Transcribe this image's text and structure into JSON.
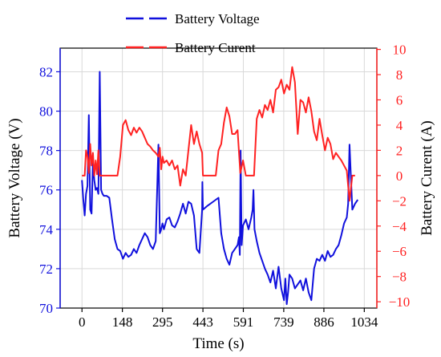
{
  "chart_data": {
    "type": "line",
    "xlabel": "Time (s)",
    "ylabel_left": "Battery Voltage (V)",
    "ylabel_right": "Battery Curent (A)",
    "x_ticks": [
      0,
      148,
      295,
      443,
      591,
      739,
      886,
      1034
    ],
    "y_left_ticks": [
      70,
      72,
      74,
      76,
      78,
      80,
      82
    ],
    "y_right_ticks": [
      -10,
      -8,
      -6,
      -4,
      -2,
      0,
      2,
      4,
      6,
      8,
      10
    ],
    "xlim": [
      -80,
      1080
    ],
    "ylim_left": [
      70,
      83.2
    ],
    "ylim_right": [
      -10.5,
      10.1
    ],
    "grid": true,
    "legend_position": "top-center",
    "series": [
      {
        "name": "Battery Voltage",
        "axis": "left",
        "color": "#1010dd",
        "x": [
          0,
          5,
          10,
          15,
          20,
          25,
          30,
          35,
          40,
          45,
          50,
          55,
          60,
          65,
          70,
          75,
          80,
          90,
          100,
          110,
          120,
          130,
          140,
          150,
          160,
          170,
          180,
          190,
          200,
          210,
          220,
          230,
          240,
          250,
          260,
          270,
          280,
          285,
          288,
          290,
          295,
          300,
          310,
          320,
          330,
          340,
          350,
          360,
          370,
          380,
          390,
          400,
          410,
          420,
          430,
          440,
          441,
          443,
          460,
          480,
          500,
          510,
          520,
          530,
          540,
          550,
          560,
          570,
          575,
          578,
          581,
          585,
          590,
          600,
          610,
          620,
          625,
          628,
          632,
          640,
          650,
          660,
          670,
          680,
          690,
          700,
          710,
          720,
          730,
          740,
          745,
          750,
          755,
          760,
          770,
          780,
          790,
          800,
          810,
          820,
          830,
          840,
          850,
          860,
          870,
          880,
          890,
          900,
          910,
          920,
          930,
          940,
          950,
          960,
          970,
          975,
          980,
          990,
          1000,
          1010
        ],
        "values": [
          76.5,
          75.5,
          74.7,
          75.8,
          76.2,
          79.8,
          75.0,
          74.8,
          77.5,
          76.5,
          76.0,
          76.1,
          75.8,
          82.0,
          76.0,
          75.8,
          75.7,
          75.7,
          75.6,
          74.5,
          73.5,
          73.0,
          72.9,
          72.5,
          72.8,
          72.6,
          72.7,
          73.0,
          72.8,
          73.2,
          73.5,
          73.8,
          73.6,
          73.2,
          73.0,
          73.4,
          78.3,
          73.8,
          73.9,
          74.0,
          74.3,
          74.0,
          74.5,
          74.6,
          74.2,
          74.1,
          74.4,
          74.8,
          75.3,
          74.8,
          75.4,
          75.3,
          74.7,
          73.0,
          72.8,
          75.0,
          76.4,
          75.0,
          75.2,
          75.4,
          75.6,
          73.8,
          73.0,
          72.5,
          72.2,
          72.8,
          73.0,
          73.2,
          73.6,
          72.7,
          78.0,
          73.2,
          74.2,
          74.5,
          74.0,
          74.6,
          75.0,
          76.0,
          74.0,
          73.4,
          72.8,
          72.4,
          72.0,
          71.7,
          71.3,
          71.9,
          71.0,
          72.1,
          71.0,
          70.4,
          71.5,
          70.2,
          70.8,
          71.7,
          71.5,
          71.0,
          71.2,
          71.4,
          70.9,
          71.5,
          70.8,
          70.4,
          72.0,
          72.5,
          72.4,
          72.7,
          72.4,
          72.9,
          72.6,
          72.7,
          73.0,
          73.2,
          73.7,
          74.3,
          74.6,
          75.3,
          78.3,
          75.0,
          75.3,
          75.5
        ]
      },
      {
        "name": "Battery Curent",
        "axis": "right",
        "color": "#ff2222",
        "x": [
          0,
          5,
          10,
          15,
          20,
          25,
          30,
          35,
          40,
          45,
          50,
          55,
          60,
          65,
          70,
          80,
          90,
          100,
          110,
          120,
          130,
          140,
          150,
          160,
          170,
          180,
          190,
          200,
          210,
          220,
          230,
          240,
          250,
          260,
          270,
          280,
          285,
          290,
          295,
          300,
          310,
          320,
          330,
          340,
          350,
          360,
          370,
          380,
          390,
          400,
          410,
          420,
          430,
          440,
          443,
          450,
          470,
          490,
          500,
          510,
          520,
          530,
          540,
          550,
          560,
          570,
          580,
          590,
          600,
          610,
          620,
          630,
          640,
          650,
          660,
          670,
          680,
          690,
          700,
          710,
          720,
          730,
          740,
          750,
          760,
          770,
          780,
          790,
          800,
          810,
          820,
          830,
          840,
          850,
          860,
          870,
          880,
          890,
          900,
          910,
          920,
          930,
          940,
          950,
          960,
          970,
          980,
          990,
          1000
        ],
        "values": [
          0,
          0,
          0,
          2.0,
          1.5,
          0.2,
          2.5,
          0.8,
          1.8,
          0.0,
          1.2,
          0.1,
          2.0,
          0.0,
          0.0,
          0.0,
          0.0,
          0.0,
          0.0,
          0.0,
          0.0,
          1.5,
          4.0,
          4.4,
          3.6,
          3.2,
          3.8,
          3.4,
          3.8,
          3.5,
          3.0,
          2.5,
          2.3,
          2.0,
          1.8,
          1.5,
          2.2,
          0.5,
          1.5,
          1.0,
          1.2,
          0.8,
          1.2,
          0.5,
          0.8,
          -0.8,
          0.5,
          0.0,
          2.0,
          4.0,
          2.5,
          3.5,
          2.5,
          1.8,
          0.0,
          0.0,
          0.0,
          0.0,
          2.0,
          2.5,
          4.2,
          5.4,
          4.7,
          3.3,
          3.3,
          3.6,
          0.2,
          1.2,
          0.0,
          0.0,
          0.0,
          0.0,
          4.5,
          5.2,
          4.6,
          5.6,
          5.2,
          6.0,
          5.0,
          6.8,
          7.0,
          7.6,
          6.5,
          7.2,
          6.8,
          8.6,
          7.4,
          3.3,
          6.0,
          5.8,
          5.0,
          6.2,
          5.1,
          3.5,
          2.8,
          4.5,
          3.2,
          2.0,
          3.0,
          2.5,
          1.3,
          1.8,
          1.5,
          1.2,
          0.8,
          0.4,
          -2.0,
          0.0,
          0.0
        ]
      }
    ],
    "legend": {
      "voltage_label": "Battery Voltage",
      "current_label": "Battery Curent"
    }
  },
  "colors": {
    "voltage": "#1010dd",
    "current": "#ff2222",
    "grid": "#d9d9d9",
    "axis": "#000000"
  }
}
